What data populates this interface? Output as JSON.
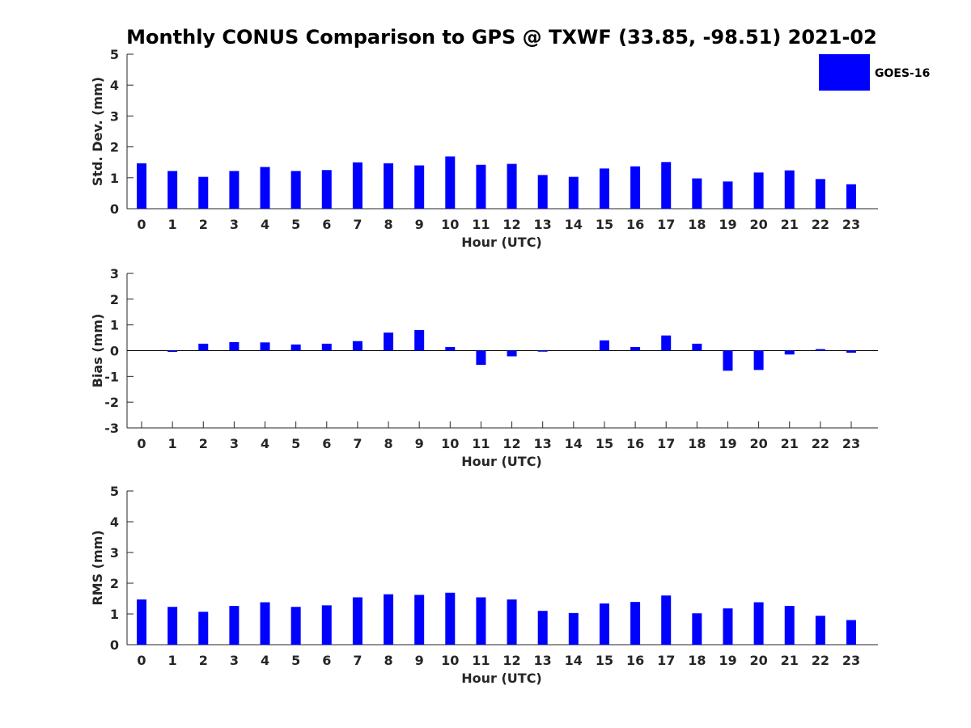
{
  "chart_data": {
    "title": "Monthly CONUS Comparison to GPS @ TXWF (33.85, -98.51) 2021-02",
    "legend": {
      "entries": [
        "GOES-16"
      ],
      "placement": "top-right",
      "color": "#0000ff"
    },
    "bar_color": "#0000ff",
    "panels": [
      {
        "type": "bar",
        "ylabel": "Std. Dev. (mm)",
        "xlabel": "Hour (UTC)",
        "ylim": [
          0,
          5
        ],
        "yticks": [
          0,
          1,
          2,
          3,
          4,
          5
        ],
        "categories": [
          0,
          1,
          2,
          3,
          4,
          5,
          6,
          7,
          8,
          9,
          10,
          11,
          12,
          13,
          14,
          15,
          16,
          17,
          18,
          19,
          20,
          21,
          22,
          23
        ],
        "series": [
          {
            "name": "GOES-16",
            "values": [
              1.47,
              1.22,
              1.03,
              1.22,
              1.35,
              1.22,
              1.25,
              1.5,
              1.47,
              1.4,
              1.69,
              1.42,
              1.45,
              1.09,
              1.03,
              1.3,
              1.37,
              1.51,
              0.98,
              0.88,
              1.17,
              1.24,
              0.96,
              0.79
            ]
          }
        ]
      },
      {
        "type": "bar",
        "ylabel": "Bias (mm)",
        "xlabel": "Hour (UTC)",
        "ylim": [
          -3,
          3
        ],
        "yticks": [
          -3,
          -2,
          -1,
          0,
          1,
          2,
          3
        ],
        "categories": [
          0,
          1,
          2,
          3,
          4,
          5,
          6,
          7,
          8,
          9,
          10,
          11,
          12,
          13,
          14,
          15,
          16,
          17,
          18,
          19,
          20,
          21,
          22,
          23
        ],
        "series": [
          {
            "name": "GOES-16",
            "values": [
              0.0,
              -0.05,
              0.27,
              0.33,
              0.32,
              0.24,
              0.27,
              0.37,
              0.7,
              0.8,
              0.14,
              -0.55,
              -0.22,
              -0.04,
              0.0,
              0.4,
              0.14,
              0.59,
              0.27,
              -0.78,
              -0.75,
              -0.15,
              0.06,
              -0.08
            ]
          }
        ]
      },
      {
        "type": "bar",
        "ylabel": "RMS (mm)",
        "xlabel": "Hour (UTC)",
        "ylim": [
          0,
          5
        ],
        "yticks": [
          0,
          1,
          2,
          3,
          4,
          5
        ],
        "categories": [
          0,
          1,
          2,
          3,
          4,
          5,
          6,
          7,
          8,
          9,
          10,
          11,
          12,
          13,
          14,
          15,
          16,
          17,
          18,
          19,
          20,
          21,
          22,
          23
        ],
        "series": [
          {
            "name": "GOES-16",
            "values": [
              1.47,
              1.23,
              1.07,
              1.26,
              1.38,
              1.23,
              1.28,
              1.54,
              1.64,
              1.62,
              1.69,
              1.54,
              1.47,
              1.1,
              1.03,
              1.34,
              1.39,
              1.6,
              1.02,
              1.18,
              1.38,
              1.26,
              0.94,
              0.8
            ]
          }
        ]
      }
    ]
  }
}
